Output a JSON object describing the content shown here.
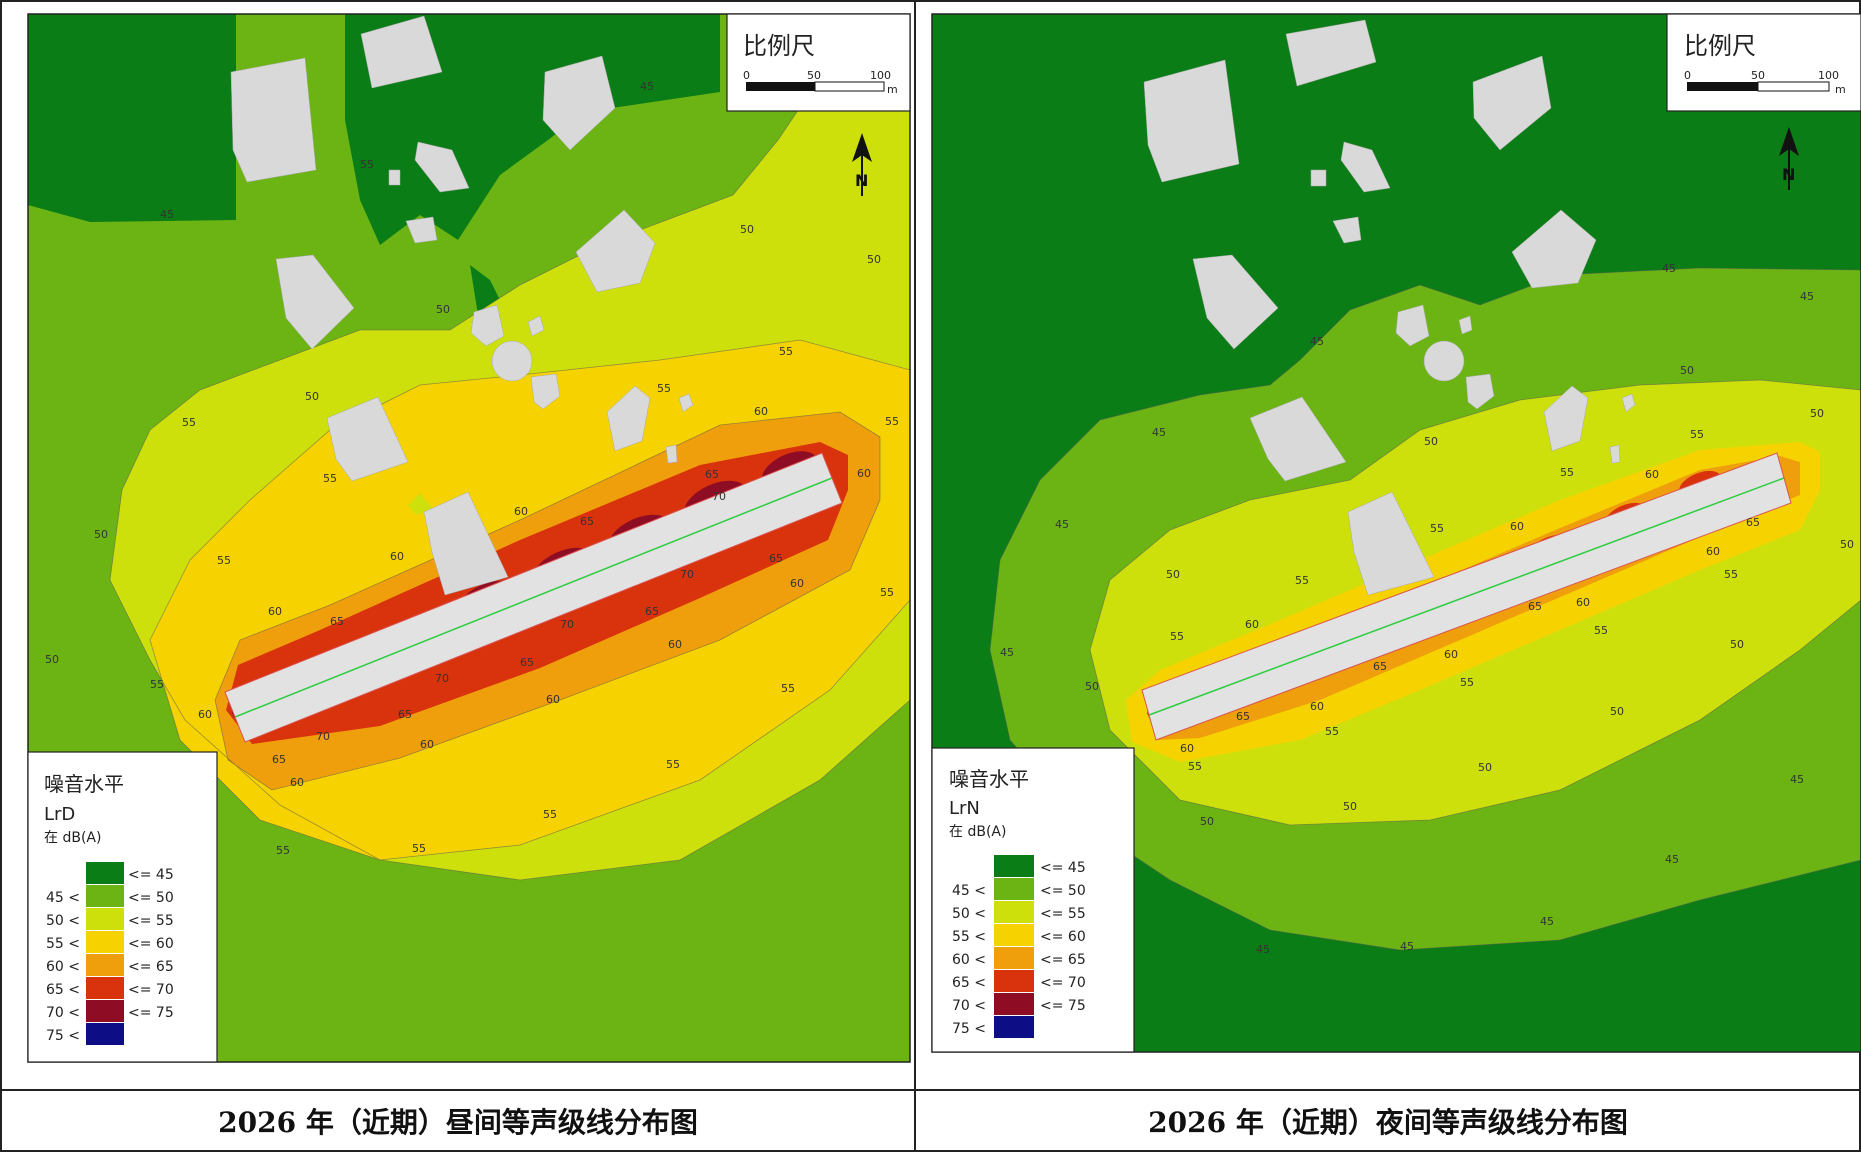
{
  "scale": {
    "title": "比例尺",
    "ticks": [
      "0",
      "50",
      "100"
    ],
    "unit": "m"
  },
  "north_label": "N",
  "contour_labels": {
    "v45": "45",
    "v50": "50",
    "v55": "55",
    "v60": "60",
    "v65": "65",
    "v70": "70"
  },
  "legend": {
    "title": "噪音水平",
    "unit": "在 dB(A)",
    "classes": [
      {
        "left": "",
        "right": "<= 45",
        "color": "#0b7d16"
      },
      {
        "left": "45 <",
        "right": "<= 50",
        "color": "#6cb414"
      },
      {
        "left": "50 <",
        "right": "<= 55",
        "color": "#cde00c"
      },
      {
        "left": "55 <",
        "right": "<= 60",
        "color": "#f6d300"
      },
      {
        "left": "60 <",
        "right": "<= 65",
        "color": "#ef9f0c"
      },
      {
        "left": "65 <",
        "right": "<= 70",
        "color": "#d8330c"
      },
      {
        "left": "70 <",
        "right": "<= 75",
        "color": "#8f0c25"
      },
      {
        "left": "75 <",
        "right": "",
        "color": "#0d0d86"
      }
    ]
  },
  "panels": [
    {
      "indicator": "LrD",
      "caption": "2026 年（近期）昼间等声级线分布图"
    },
    {
      "indicator": "LrN",
      "caption": "2026 年（近期）夜间等声级线分布图"
    }
  ],
  "colors": {
    "building": "#d9d9d9",
    "road": "#e2e2e2",
    "centerline": "#2ecc40",
    "frame": "#222222"
  }
}
